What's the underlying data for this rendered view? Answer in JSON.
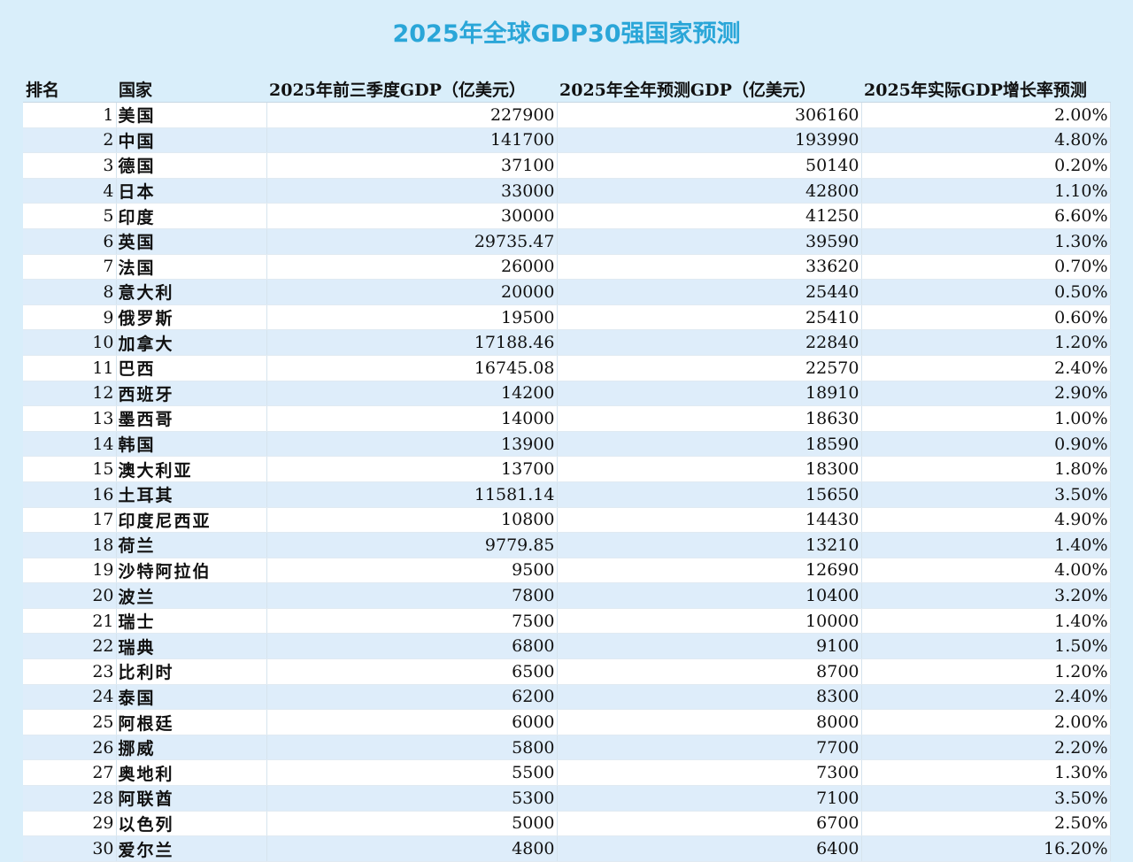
{
  "title": "2025年全球GDP30强国家预测",
  "table": {
    "headers": [
      "排名",
      "国家",
      "2025年前三季度GDP（亿美元）",
      "2025年全年预测GDP（亿美元）",
      "2025年实际GDP增长率预测"
    ],
    "rows": [
      [
        "1",
        "美国",
        "227900",
        "306160",
        "2.00%"
      ],
      [
        "2",
        "中国",
        "141700",
        "193990",
        "4.80%"
      ],
      [
        "3",
        "德国",
        "37100",
        "50140",
        "0.20%"
      ],
      [
        "4",
        "日本",
        "33000",
        "42800",
        "1.10%"
      ],
      [
        "5",
        "印度",
        "30000",
        "41250",
        "6.60%"
      ],
      [
        "6",
        "英国",
        "29735.47",
        "39590",
        "1.30%"
      ],
      [
        "7",
        "法国",
        "26000",
        "33620",
        "0.70%"
      ],
      [
        "8",
        "意大利",
        "20000",
        "25440",
        "0.50%"
      ],
      [
        "9",
        "俄罗斯",
        "19500",
        "25410",
        "0.60%"
      ],
      [
        "10",
        "加拿大",
        "17188.46",
        "22840",
        "1.20%"
      ],
      [
        "11",
        "巴西",
        "16745.08",
        "22570",
        "2.40%"
      ],
      [
        "12",
        "西班牙",
        "14200",
        "18910",
        "2.90%"
      ],
      [
        "13",
        "墨西哥",
        "14000",
        "18630",
        "1.00%"
      ],
      [
        "14",
        "韩国",
        "13900",
        "18590",
        "0.90%"
      ],
      [
        "15",
        "澳大利亚",
        "13700",
        "18300",
        "1.80%"
      ],
      [
        "16",
        "土耳其",
        "11581.14",
        "15650",
        "3.50%"
      ],
      [
        "17",
        "印度尼西亚",
        "10800",
        "14430",
        "4.90%"
      ],
      [
        "18",
        "荷兰",
        "9779.85",
        "13210",
        "1.40%"
      ],
      [
        "19",
        "沙特阿拉伯",
        "9500",
        "12690",
        "4.00%"
      ],
      [
        "20",
        "波兰",
        "7800",
        "10400",
        "3.20%"
      ],
      [
        "21",
        "瑞士",
        "7500",
        "10000",
        "1.40%"
      ],
      [
        "22",
        "瑞典",
        "6800",
        "9100",
        "1.50%"
      ],
      [
        "23",
        "比利时",
        "6500",
        "8700",
        "1.20%"
      ],
      [
        "24",
        "泰国",
        "6200",
        "8300",
        "2.40%"
      ],
      [
        "25",
        "阿根廷",
        "6000",
        "8000",
        "2.00%"
      ],
      [
        "26",
        "挪威",
        "5800",
        "7700",
        "2.20%"
      ],
      [
        "27",
        "奥地利",
        "5500",
        "7300",
        "1.30%"
      ],
      [
        "28",
        "阿联酋",
        "5300",
        "7100",
        "3.50%"
      ],
      [
        "29",
        "以色列",
        "5000",
        "6700",
        "2.50%"
      ],
      [
        "30",
        "爱尔兰",
        "4800",
        "6400",
        "16.20%"
      ]
    ]
  },
  "colors": {
    "background": "#d9eefa",
    "title": "#2aa6d8",
    "row_alt": "#deedfa",
    "row": "#ffffff"
  }
}
